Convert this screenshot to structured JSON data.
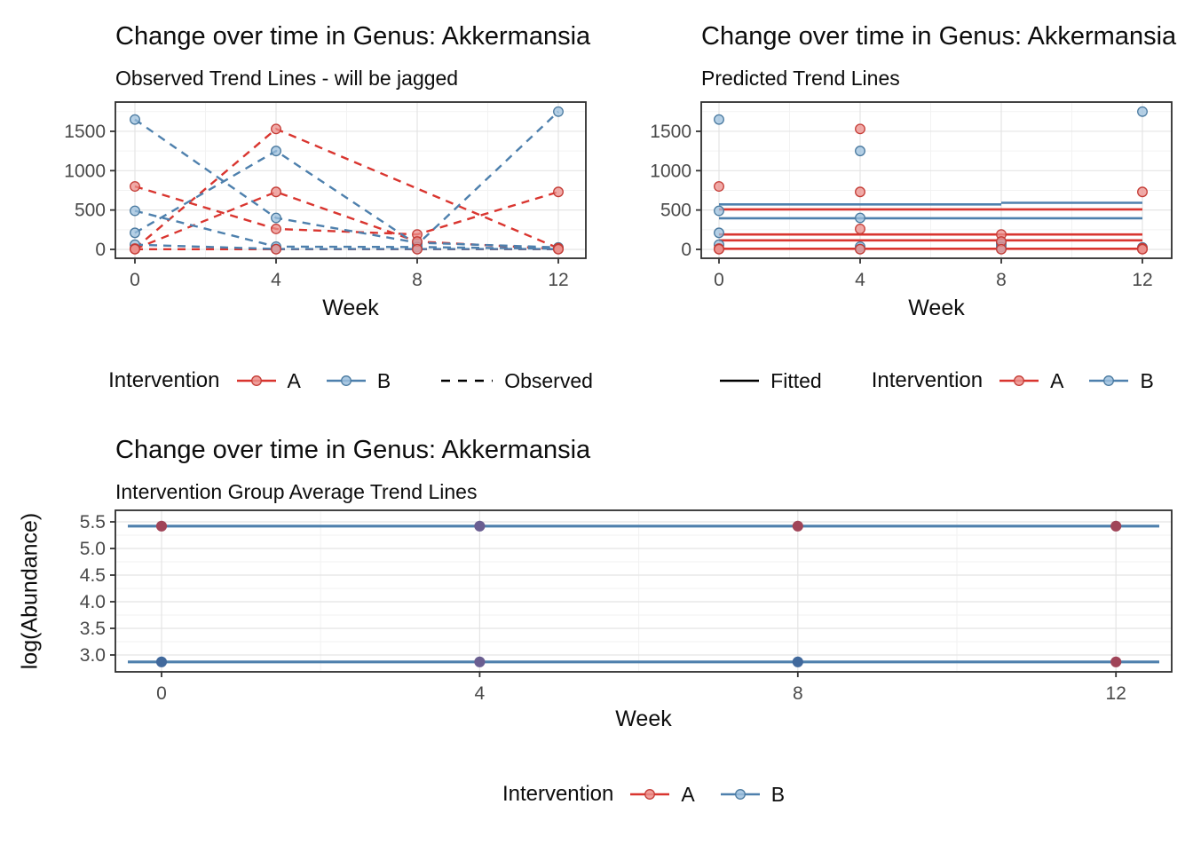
{
  "page": {
    "background": "#FFFFFF"
  },
  "colors": {
    "red_line": "#D9352F",
    "red_point_fill": "#EC8F8B",
    "red_point_stroke": "#C43B35",
    "blue_line": "#4E80AD",
    "blue_point_fill": "#9CC0DE",
    "blue_point_stroke": "#49799F",
    "maroon_point": "#A04458",
    "purple_point": "#6A5E91",
    "dark_blue_point": "#41699C",
    "black_key": "#000000",
    "grid_major": "#E4E4E4",
    "grid_minor": "#F2F2F2",
    "panel_border": "#2E2E2E",
    "tick_mark": "#333333",
    "tick_text": "#4A4A4A"
  },
  "legends": [
    {
      "title": "Intervention",
      "a": "A",
      "b": "B",
      "linetype": "Observed"
    },
    {
      "fitted": "Fitted",
      "title": "Intervention",
      "a": "A",
      "b": "B"
    },
    {
      "title": "Intervention",
      "a": "A",
      "b": "B"
    }
  ],
  "chart_data": [
    {
      "type": "line",
      "style": "dashed_observed",
      "title": "Change over time in Genus: Akkermansia",
      "subtitle": "Observed Trend Lines - will be jagged",
      "xlabel": "Week",
      "ylabel": "",
      "legend_position": "bottom",
      "grid": true,
      "x_ticks": [
        0,
        4,
        8,
        12
      ],
      "x_tick_labels": [
        "0",
        "4",
        "8",
        "12"
      ],
      "x_minor": [
        2,
        6,
        10
      ],
      "y_ticks": [
        0,
        500,
        1000,
        1500
      ],
      "y_tick_labels": [
        "0",
        "500",
        "1000",
        "1500"
      ],
      "y_minor": [
        250,
        750,
        1250,
        1750
      ],
      "xlim": [
        -0.6,
        12.8
      ],
      "ylim": [
        -110,
        1875
      ],
      "groups": {
        "A": "red",
        "B": "blue"
      },
      "series": [
        {
          "group": "A",
          "points": [
            [
              0,
              800
            ],
            [
              4,
              260
            ],
            [
              8,
              190
            ],
            [
              12,
              730
            ]
          ]
        },
        {
          "group": "A",
          "points": [
            [
              0,
              10
            ],
            [
              4,
              1530
            ],
            [
              12,
              15
            ]
          ]
        },
        {
          "group": "A",
          "points": [
            [
              0,
              5
            ],
            [
              4,
              730
            ],
            [
              8,
              100
            ],
            [
              12,
              5
            ]
          ]
        },
        {
          "group": "A",
          "points": [
            [
              0,
              2
            ],
            [
              4,
              2
            ],
            [
              8,
              2
            ],
            [
              12,
              2
            ]
          ]
        },
        {
          "group": "B",
          "points": [
            [
              0,
              210
            ],
            [
              4,
              1250
            ],
            [
              8,
              60
            ],
            [
              12,
              1750
            ]
          ]
        },
        {
          "group": "B",
          "points": [
            [
              0,
              1650
            ],
            [
              4,
              400
            ],
            [
              8,
              85
            ],
            [
              12,
              25
            ]
          ]
        },
        {
          "group": "B",
          "points": [
            [
              0,
              490
            ],
            [
              4,
              35
            ],
            [
              8,
              30
            ],
            [
              12,
              8
            ]
          ]
        },
        {
          "group": "B",
          "points": [
            [
              0,
              60
            ],
            [
              4,
              5
            ],
            [
              8,
              5
            ],
            [
              12,
              5
            ]
          ]
        }
      ]
    },
    {
      "type": "scatter",
      "style": "solid_fitted",
      "title": "Change over time in Genus: Akkermansia",
      "subtitle": "Predicted Trend Lines",
      "xlabel": "Week",
      "ylabel": "",
      "legend_position": "bottom",
      "grid": true,
      "x_ticks": [
        0,
        4,
        8,
        12
      ],
      "x_tick_labels": [
        "0",
        "4",
        "8",
        "12"
      ],
      "x_minor": [
        2,
        6,
        10
      ],
      "y_ticks": [
        0,
        500,
        1000,
        1500
      ],
      "y_tick_labels": [
        "0",
        "500",
        "1000",
        "1500"
      ],
      "y_minor": [
        250,
        750,
        1250,
        1750
      ],
      "xlim": [
        -0.6,
        12.8
      ],
      "ylim": [
        -110,
        1875
      ],
      "groups": {
        "A": "red",
        "B": "blue"
      },
      "series": [
        {
          "group": "A",
          "points": [
            [
              0,
              800
            ],
            [
              4,
              260
            ],
            [
              8,
              190
            ],
            [
              12,
              730
            ]
          ]
        },
        {
          "group": "A",
          "points": [
            [
              0,
              10
            ],
            [
              4,
              1530
            ],
            [
              12,
              15
            ]
          ]
        },
        {
          "group": "A",
          "points": [
            [
              0,
              5
            ],
            [
              4,
              730
            ],
            [
              8,
              100
            ],
            [
              12,
              5
            ]
          ]
        },
        {
          "group": "A",
          "points": [
            [
              0,
              2
            ],
            [
              4,
              2
            ],
            [
              8,
              2
            ],
            [
              12,
              2
            ]
          ]
        },
        {
          "group": "B",
          "points": [
            [
              0,
              210
            ],
            [
              4,
              1250
            ],
            [
              8,
              60
            ],
            [
              12,
              1750
            ]
          ]
        },
        {
          "group": "B",
          "points": [
            [
              0,
              1650
            ],
            [
              4,
              400
            ],
            [
              8,
              85
            ],
            [
              12,
              25
            ]
          ]
        },
        {
          "group": "B",
          "points": [
            [
              0,
              490
            ],
            [
              4,
              35
            ],
            [
              8,
              30
            ],
            [
              12,
              8
            ]
          ]
        },
        {
          "group": "B",
          "points": [
            [
              0,
              60
            ],
            [
              4,
              5
            ],
            [
              8,
              5
            ],
            [
              12,
              5
            ]
          ]
        }
      ],
      "fitted_lines": [
        {
          "group": "B",
          "x": [
            0,
            8
          ],
          "y": [
            572,
            572
          ]
        },
        {
          "group": "B",
          "x": [
            8,
            12
          ],
          "y": [
            592,
            592
          ]
        },
        {
          "group": "A",
          "x": [
            0,
            12
          ],
          "y": [
            508,
            508
          ]
        },
        {
          "group": "B",
          "x": [
            0,
            12
          ],
          "y": [
            395,
            395
          ]
        },
        {
          "group": "A",
          "x": [
            0,
            12
          ],
          "y": [
            190,
            190
          ]
        },
        {
          "group": "A",
          "x": [
            0,
            12
          ],
          "y": [
            115,
            115
          ]
        },
        {
          "group": "A",
          "x": [
            0,
            12
          ],
          "y": [
            8,
            8
          ]
        }
      ]
    },
    {
      "type": "line",
      "style": "group_average",
      "title": "Change over time in Genus: Akkermansia",
      "subtitle": "Intervention Group Average Trend Lines",
      "xlabel": "Week",
      "ylabel": "log(Abundance)",
      "legend_position": "bottom",
      "grid": true,
      "x_ticks": [
        0,
        4,
        8,
        12
      ],
      "x_tick_labels": [
        "0",
        "4",
        "8",
        "12"
      ],
      "x_minor": [
        2,
        6,
        10
      ],
      "y_ticks": [
        3.0,
        3.5,
        4.0,
        4.5,
        5.0,
        5.5
      ],
      "y_tick_labels": [
        "3.0",
        "3.5",
        "4.0",
        "4.5",
        "5.0",
        "5.5"
      ],
      "y_minor": [
        3.25,
        3.75,
        4.25,
        4.75,
        5.25
      ],
      "xlim": [
        -0.6,
        12.9
      ],
      "ylim": [
        2.68,
        5.72
      ],
      "avg_lines": [
        {
          "y": 5.42,
          "color": "blue_line"
        },
        {
          "y": 2.87,
          "color": "blue_line"
        }
      ],
      "points": [
        {
          "x": 0,
          "y": 5.42,
          "color": "maroon_point"
        },
        {
          "x": 4,
          "y": 5.42,
          "color": "purple_point"
        },
        {
          "x": 8,
          "y": 5.42,
          "color": "maroon_point"
        },
        {
          "x": 12,
          "y": 5.42,
          "color": "maroon_point"
        },
        {
          "x": 0,
          "y": 2.87,
          "color": "dark_blue_point"
        },
        {
          "x": 4,
          "y": 2.87,
          "color": "purple_point"
        },
        {
          "x": 8,
          "y": 2.87,
          "color": "dark_blue_point"
        },
        {
          "x": 12,
          "y": 2.87,
          "color": "maroon_point"
        }
      ]
    }
  ]
}
